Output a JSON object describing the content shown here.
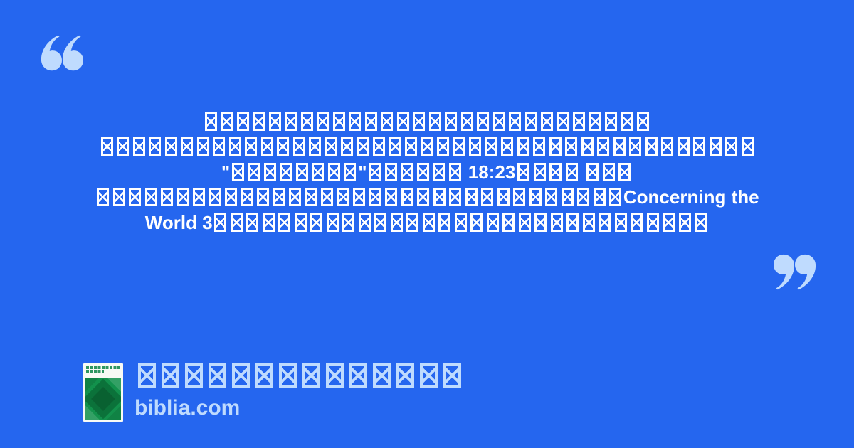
{
  "colors": {
    "background": "#2566EF",
    "text": "#FFFFFF",
    "accent": "#BFDBFE",
    "cover_bg": "#F8FAF5",
    "cover_text": "#2E9660",
    "cover_green": "#12914C",
    "cover_green_dark": "#0B723A"
  },
  "icons": {
    "open_quote": "“",
    "close_quote": "”",
    "tofu_box": "missing-glyph-box-with-x"
  },
  "quote": {
    "lines": [
      "□□□□□□□□□□□□□□□□□□□□□□□□□□□□",
      "□□□□□□□□□□□□□□□□□□□□□□□□□□□□□□□□□□□□□□□□□",
      "\"□□□□□□□□\"□□□□□□ 18:23□□□□ □□□",
      "□□□□□□□□□□□□□□□□□□□□□□□□□□□□□□□□□Concerning the",
      "World 3□□□□□□□□□□□□□□□□□□□□□□□□□□□□□□□"
    ]
  },
  "footer": {
    "site_title_tofu": "□□□□□□□□□□□□□□",
    "domain": "biblia.com"
  }
}
